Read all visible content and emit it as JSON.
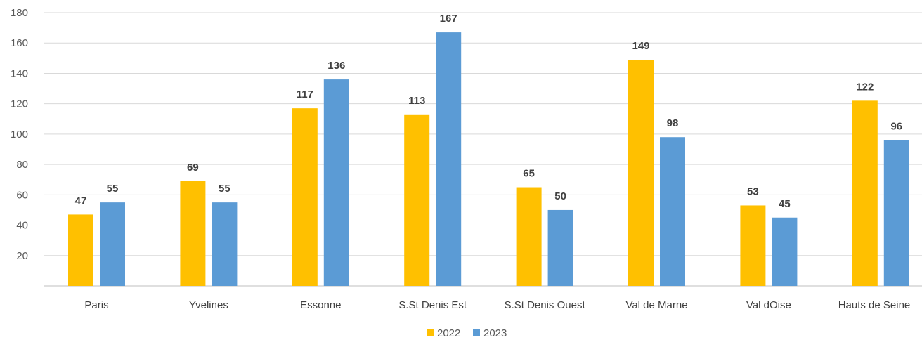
{
  "chart_data": {
    "type": "bar",
    "categories": [
      "Paris",
      "Yvelines",
      "Essonne",
      "S.St Denis Est",
      "S.St Denis Ouest",
      "Val de Marne",
      "Val dOise",
      "Hauts de Seine"
    ],
    "series": [
      {
        "name": "2022",
        "color": "#FFC000",
        "values": [
          47,
          69,
          117,
          113,
          65,
          149,
          53,
          122
        ]
      },
      {
        "name": "2023",
        "color": "#5B9BD5",
        "values": [
          55,
          55,
          136,
          167,
          50,
          98,
          45,
          96
        ]
      }
    ],
    "y_ticks": [
      "20",
      "40",
      "60",
      "80",
      "100",
      "120",
      "140",
      "160",
      "180"
    ],
    "ylim": [
      0,
      180
    ],
    "grid": true,
    "legend_position": "bottom",
    "title": "",
    "xlabel": "",
    "ylabel": ""
  }
}
